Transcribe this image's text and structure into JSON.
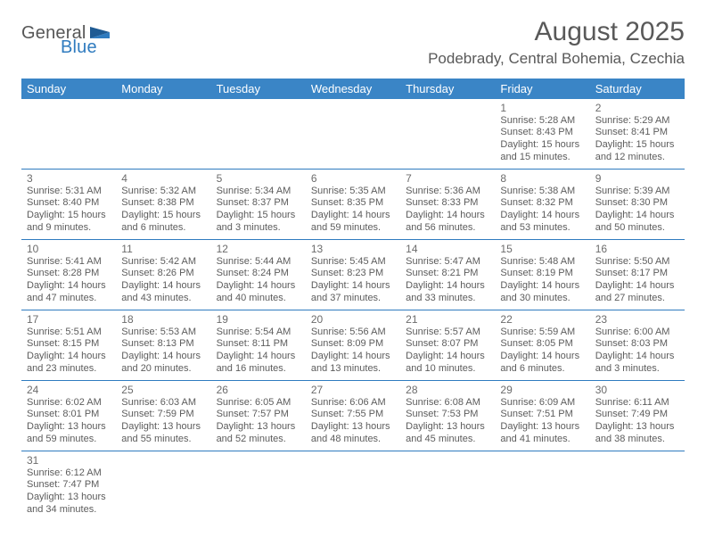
{
  "brand": {
    "general": "General",
    "blue": "Blue"
  },
  "title": {
    "month": "August 2025",
    "location": "Podebrady, Central Bohemia, Czechia"
  },
  "colors": {
    "header_bg": "#3a85c6",
    "header_text": "#ffffff",
    "row_border": "#2f7bbf",
    "text_primary": "#5c5c5c",
    "title_color": "#595959",
    "logo_gray": "#565656",
    "logo_blue": "#2f7bbf",
    "background": "#ffffff"
  },
  "weekdays": [
    "Sunday",
    "Monday",
    "Tuesday",
    "Wednesday",
    "Thursday",
    "Friday",
    "Saturday"
  ],
  "weeks": [
    [
      null,
      null,
      null,
      null,
      null,
      {
        "n": "1",
        "sunrise": "Sunrise: 5:28 AM",
        "sunset": "Sunset: 8:43 PM",
        "day1": "Daylight: 15 hours",
        "day2": "and 15 minutes."
      },
      {
        "n": "2",
        "sunrise": "Sunrise: 5:29 AM",
        "sunset": "Sunset: 8:41 PM",
        "day1": "Daylight: 15 hours",
        "day2": "and 12 minutes."
      }
    ],
    [
      {
        "n": "3",
        "sunrise": "Sunrise: 5:31 AM",
        "sunset": "Sunset: 8:40 PM",
        "day1": "Daylight: 15 hours",
        "day2": "and 9 minutes."
      },
      {
        "n": "4",
        "sunrise": "Sunrise: 5:32 AM",
        "sunset": "Sunset: 8:38 PM",
        "day1": "Daylight: 15 hours",
        "day2": "and 6 minutes."
      },
      {
        "n": "5",
        "sunrise": "Sunrise: 5:34 AM",
        "sunset": "Sunset: 8:37 PM",
        "day1": "Daylight: 15 hours",
        "day2": "and 3 minutes."
      },
      {
        "n": "6",
        "sunrise": "Sunrise: 5:35 AM",
        "sunset": "Sunset: 8:35 PM",
        "day1": "Daylight: 14 hours",
        "day2": "and 59 minutes."
      },
      {
        "n": "7",
        "sunrise": "Sunrise: 5:36 AM",
        "sunset": "Sunset: 8:33 PM",
        "day1": "Daylight: 14 hours",
        "day2": "and 56 minutes."
      },
      {
        "n": "8",
        "sunrise": "Sunrise: 5:38 AM",
        "sunset": "Sunset: 8:32 PM",
        "day1": "Daylight: 14 hours",
        "day2": "and 53 minutes."
      },
      {
        "n": "9",
        "sunrise": "Sunrise: 5:39 AM",
        "sunset": "Sunset: 8:30 PM",
        "day1": "Daylight: 14 hours",
        "day2": "and 50 minutes."
      }
    ],
    [
      {
        "n": "10",
        "sunrise": "Sunrise: 5:41 AM",
        "sunset": "Sunset: 8:28 PM",
        "day1": "Daylight: 14 hours",
        "day2": "and 47 minutes."
      },
      {
        "n": "11",
        "sunrise": "Sunrise: 5:42 AM",
        "sunset": "Sunset: 8:26 PM",
        "day1": "Daylight: 14 hours",
        "day2": "and 43 minutes."
      },
      {
        "n": "12",
        "sunrise": "Sunrise: 5:44 AM",
        "sunset": "Sunset: 8:24 PM",
        "day1": "Daylight: 14 hours",
        "day2": "and 40 minutes."
      },
      {
        "n": "13",
        "sunrise": "Sunrise: 5:45 AM",
        "sunset": "Sunset: 8:23 PM",
        "day1": "Daylight: 14 hours",
        "day2": "and 37 minutes."
      },
      {
        "n": "14",
        "sunrise": "Sunrise: 5:47 AM",
        "sunset": "Sunset: 8:21 PM",
        "day1": "Daylight: 14 hours",
        "day2": "and 33 minutes."
      },
      {
        "n": "15",
        "sunrise": "Sunrise: 5:48 AM",
        "sunset": "Sunset: 8:19 PM",
        "day1": "Daylight: 14 hours",
        "day2": "and 30 minutes."
      },
      {
        "n": "16",
        "sunrise": "Sunrise: 5:50 AM",
        "sunset": "Sunset: 8:17 PM",
        "day1": "Daylight: 14 hours",
        "day2": "and 27 minutes."
      }
    ],
    [
      {
        "n": "17",
        "sunrise": "Sunrise: 5:51 AM",
        "sunset": "Sunset: 8:15 PM",
        "day1": "Daylight: 14 hours",
        "day2": "and 23 minutes."
      },
      {
        "n": "18",
        "sunrise": "Sunrise: 5:53 AM",
        "sunset": "Sunset: 8:13 PM",
        "day1": "Daylight: 14 hours",
        "day2": "and 20 minutes."
      },
      {
        "n": "19",
        "sunrise": "Sunrise: 5:54 AM",
        "sunset": "Sunset: 8:11 PM",
        "day1": "Daylight: 14 hours",
        "day2": "and 16 minutes."
      },
      {
        "n": "20",
        "sunrise": "Sunrise: 5:56 AM",
        "sunset": "Sunset: 8:09 PM",
        "day1": "Daylight: 14 hours",
        "day2": "and 13 minutes."
      },
      {
        "n": "21",
        "sunrise": "Sunrise: 5:57 AM",
        "sunset": "Sunset: 8:07 PM",
        "day1": "Daylight: 14 hours",
        "day2": "and 10 minutes."
      },
      {
        "n": "22",
        "sunrise": "Sunrise: 5:59 AM",
        "sunset": "Sunset: 8:05 PM",
        "day1": "Daylight: 14 hours",
        "day2": "and 6 minutes."
      },
      {
        "n": "23",
        "sunrise": "Sunrise: 6:00 AM",
        "sunset": "Sunset: 8:03 PM",
        "day1": "Daylight: 14 hours",
        "day2": "and 3 minutes."
      }
    ],
    [
      {
        "n": "24",
        "sunrise": "Sunrise: 6:02 AM",
        "sunset": "Sunset: 8:01 PM",
        "day1": "Daylight: 13 hours",
        "day2": "and 59 minutes."
      },
      {
        "n": "25",
        "sunrise": "Sunrise: 6:03 AM",
        "sunset": "Sunset: 7:59 PM",
        "day1": "Daylight: 13 hours",
        "day2": "and 55 minutes."
      },
      {
        "n": "26",
        "sunrise": "Sunrise: 6:05 AM",
        "sunset": "Sunset: 7:57 PM",
        "day1": "Daylight: 13 hours",
        "day2": "and 52 minutes."
      },
      {
        "n": "27",
        "sunrise": "Sunrise: 6:06 AM",
        "sunset": "Sunset: 7:55 PM",
        "day1": "Daylight: 13 hours",
        "day2": "and 48 minutes."
      },
      {
        "n": "28",
        "sunrise": "Sunrise: 6:08 AM",
        "sunset": "Sunset: 7:53 PM",
        "day1": "Daylight: 13 hours",
        "day2": "and 45 minutes."
      },
      {
        "n": "29",
        "sunrise": "Sunrise: 6:09 AM",
        "sunset": "Sunset: 7:51 PM",
        "day1": "Daylight: 13 hours",
        "day2": "and 41 minutes."
      },
      {
        "n": "30",
        "sunrise": "Sunrise: 6:11 AM",
        "sunset": "Sunset: 7:49 PM",
        "day1": "Daylight: 13 hours",
        "day2": "and 38 minutes."
      }
    ],
    [
      {
        "n": "31",
        "sunrise": "Sunrise: 6:12 AM",
        "sunset": "Sunset: 7:47 PM",
        "day1": "Daylight: 13 hours",
        "day2": "and 34 minutes."
      },
      null,
      null,
      null,
      null,
      null,
      null
    ]
  ]
}
